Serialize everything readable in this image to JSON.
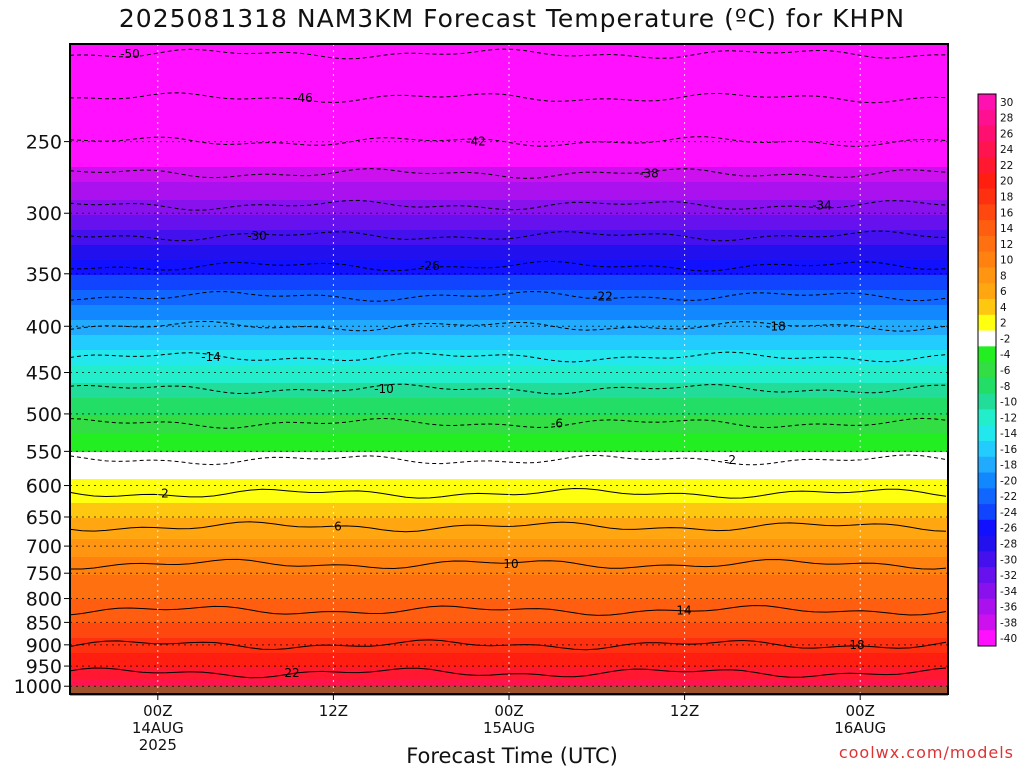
{
  "chart_data": {
    "type": "heatmap",
    "title": "2025081318 NAM3KM Forecast Temperature (ºC) for KHPN",
    "xlabel": "Forecast Time (UTC)",
    "ylabel": "",
    "credit": "coolwx.com/models",
    "yscale": "log-pressure",
    "yaxis": {
      "ticks": [
        "250",
        "300",
        "350",
        "400",
        "450",
        "500",
        "550",
        "600",
        "650",
        "700",
        "750",
        "800",
        "850",
        "900",
        "950",
        "1000"
      ],
      "range": [
        195,
        1020
      ],
      "inverted": true
    },
    "xaxis": {
      "range_hours": [
        -5,
        45
      ],
      "ticks": [
        {
          "hour": 0,
          "lines": [
            "00Z",
            "14AUG",
            "2025"
          ]
        },
        {
          "hour": 10,
          "lines": [
            "12Z"
          ]
        },
        {
          "hour": 20,
          "lines": [
            "00Z",
            "15AUG"
          ]
        },
        {
          "hour": 30,
          "lines": [
            "12Z"
          ]
        },
        {
          "hour": 40,
          "lines": [
            "00Z",
            "16AUG"
          ]
        }
      ]
    },
    "grid": true,
    "legend": {
      "position": "right",
      "labels": [
        "30",
        "28",
        "26",
        "24",
        "22",
        "20",
        "18",
        "16",
        "14",
        "12",
        "10",
        "8",
        "6",
        "4",
        "2",
        "-2",
        "-4",
        "-6",
        "-8",
        "-10",
        "-12",
        "-14",
        "-16",
        "-18",
        "-20",
        "-22",
        "-24",
        "-26",
        "-28",
        "-30",
        "-32",
        "-34",
        "-36",
        "-38",
        "-40"
      ]
    },
    "colors": [
      "#ff10b0",
      "#ff1090",
      "#ff1070",
      "#ff1450",
      "#ff1830",
      "#ff1e10",
      "#ff3010",
      "#ff4810",
      "#ff5e10",
      "#ff7010",
      "#ff8210",
      "#ff9510",
      "#ffa610",
      "#ffc810",
      "#ffff10",
      "#ffffff",
      "#22ee22",
      "#33dd44",
      "#22dd66",
      "#22dd99",
      "#22eecc",
      "#22e8ee",
      "#22ccff",
      "#22aaff",
      "#1188ff",
      "#1166ff",
      "#1144ff",
      "#1111ff",
      "#2211ee",
      "#4411ee",
      "#6611ee",
      "#8811ee",
      "#aa11ee",
      "#cc11ee",
      "#ff11ff"
    ],
    "contour_labels": [
      "-50",
      "-46",
      "-42",
      "-38",
      "-34",
      "-30",
      "-26",
      "-22",
      "-18",
      "-14",
      "-10",
      "-6",
      "-2",
      "2",
      "6",
      "10",
      "14",
      "18",
      "22"
    ],
    "profile": {
      "pressure": [
        1000,
        950,
        900,
        850,
        800,
        750,
        700,
        650,
        600,
        550,
        500,
        450,
        400,
        350,
        300,
        250,
        200
      ],
      "temperature": [
        24,
        21,
        18,
        15,
        13,
        11,
        8,
        5,
        1,
        -3,
        -7,
        -12,
        -18,
        -25,
        -33,
        -42,
        -50
      ]
    },
    "terrain": {
      "surface_pressure": 1000,
      "color": "#a0522d"
    }
  }
}
